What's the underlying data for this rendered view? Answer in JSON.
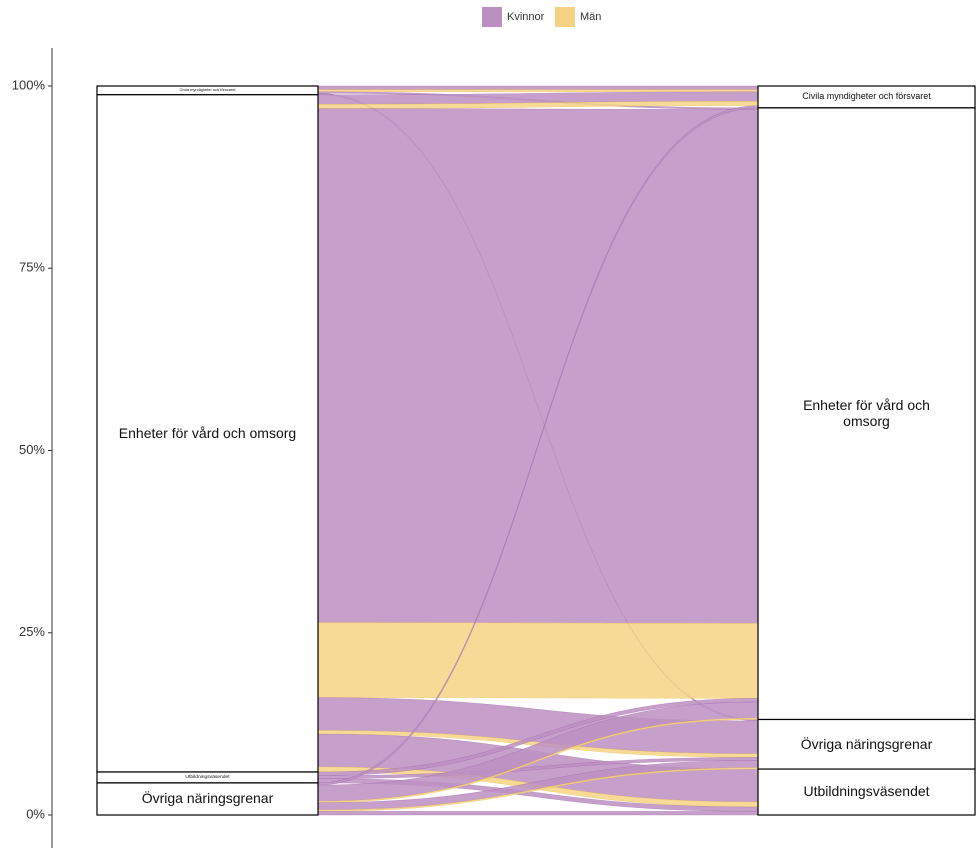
{
  "chart_data": {
    "type": "alluvial",
    "legend": "top",
    "ylim": [
      0,
      100
    ],
    "yticks": [
      {
        "value": 0,
        "label": "0%"
      },
      {
        "value": 25,
        "label": "25%"
      },
      {
        "value": 50,
        "label": "50%"
      },
      {
        "value": 75,
        "label": "75%"
      },
      {
        "value": 100,
        "label": "100%"
      }
    ],
    "series": [
      {
        "name": "Kvinnor",
        "color": "#bc8fc2"
      },
      {
        "name": "Män",
        "color": "#f5d383"
      }
    ],
    "axes": [
      {
        "strata": [
          "Civila myndigheter och försvaret",
          "Enheter för vård och omsorg",
          "Utbildningsväsendet",
          "Övriga näringsgrenar"
        ]
      },
      {
        "strata": [
          "Civila myndigheter och försvaret",
          "Enheter för vård och omsorg",
          "Övriga näringsgrenar",
          "Utbildningsväsendet"
        ]
      }
    ],
    "flows": [
      {
        "from": 0,
        "to": 0,
        "group": 0,
        "value": 0.5
      },
      {
        "from": 0,
        "to": 0,
        "group": 1,
        "value": 0.3
      },
      {
        "from": 0,
        "to": 1,
        "group": 0,
        "value": 0.2
      },
      {
        "from": 0,
        "to": 2,
        "group": 0,
        "value": 0.2
      },
      {
        "from": 1,
        "to": 0,
        "group": 0,
        "value": 1.3
      },
      {
        "from": 1,
        "to": 0,
        "group": 1,
        "value": 0.6
      },
      {
        "from": 1,
        "to": 1,
        "group": 0,
        "value": 70.5
      },
      {
        "from": 1,
        "to": 1,
        "group": 1,
        "value": 10.3
      },
      {
        "from": 1,
        "to": 2,
        "group": 0,
        "value": 4.5
      },
      {
        "from": 1,
        "to": 2,
        "group": 1,
        "value": 0.5
      },
      {
        "from": 1,
        "to": 3,
        "group": 0,
        "value": 4.5
      },
      {
        "from": 1,
        "to": 3,
        "group": 1,
        "value": 0.7
      },
      {
        "from": 2,
        "to": 1,
        "group": 0,
        "value": 0.5
      },
      {
        "from": 2,
        "to": 2,
        "group": 0,
        "value": 0.4
      },
      {
        "from": 2,
        "to": 3,
        "group": 0,
        "value": 0.6
      },
      {
        "from": 3,
        "to": 0,
        "group": 0,
        "value": 0.3
      },
      {
        "from": 3,
        "to": 1,
        "group": 0,
        "value": 2.2
      },
      {
        "from": 3,
        "to": 1,
        "group": 1,
        "value": 0.2
      },
      {
        "from": 3,
        "to": 2,
        "group": 0,
        "value": 1.0
      },
      {
        "from": 3,
        "to": 2,
        "group": 1,
        "value": 0.2
      },
      {
        "from": 3,
        "to": 3,
        "group": 0,
        "value": 0.5
      }
    ]
  }
}
